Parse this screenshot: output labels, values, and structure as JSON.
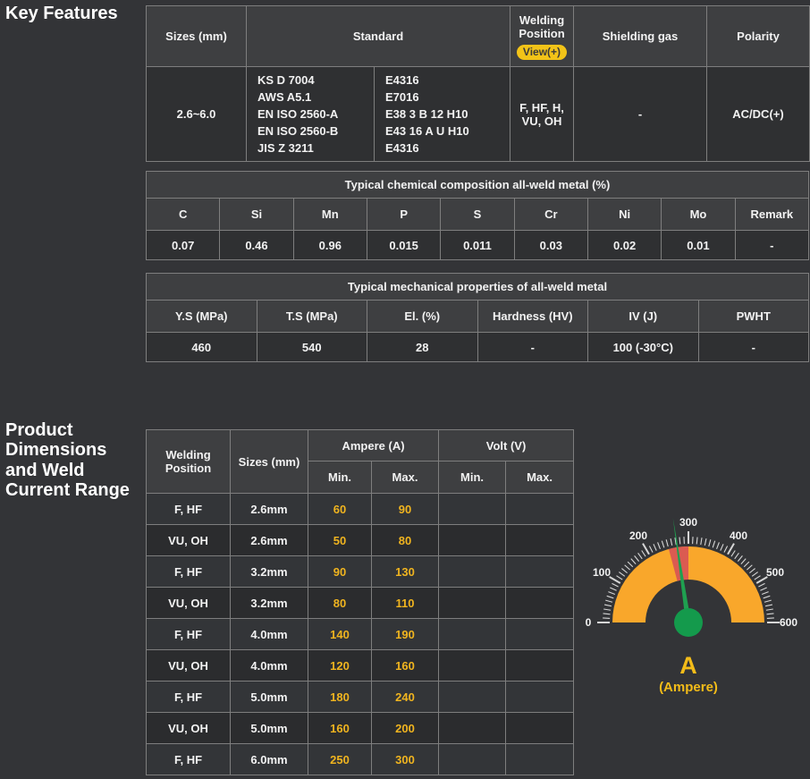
{
  "headings": {
    "key_features": "Key Features",
    "product_dimensions": "Product Dimensions and Weld Current Range"
  },
  "key_table": {
    "headers": {
      "sizes": "Sizes (mm)",
      "standard": "Standard",
      "welding_position": "Welding Position",
      "view_badge": "View(+)",
      "shielding_gas": "Shielding gas",
      "polarity": "Polarity"
    },
    "row": {
      "sizes": "2.6~6.0",
      "standard_left": "KS D 7004\nAWS A5.1\nEN ISO 2560-A\nEN ISO 2560-B\nJIS Z 3211",
      "standard_right": "E4316\nE7016\nE38 3 B 12 H10\nE43 16 A U H10\nE4316",
      "welding_position": "F, HF, H, VU, OH",
      "shielding_gas": "-",
      "polarity": "AC/DC(+)"
    }
  },
  "chemical_table": {
    "title": "Typical chemical composition all-weld metal (%)",
    "columns": [
      "C",
      "Si",
      "Mn",
      "P",
      "S",
      "Cr",
      "Ni",
      "Mo",
      "Remark"
    ],
    "values": [
      "0.07",
      "0.46",
      "0.96",
      "0.015",
      "0.011",
      "0.03",
      "0.02",
      "0.01",
      "-"
    ]
  },
  "mechanical_table": {
    "title": "Typical mechanical properties of all-weld metal",
    "columns": [
      "Y.S (MPa)",
      "T.S (MPa)",
      "El. (%)",
      "Hardness (HV)",
      "IV (J)",
      "PWHT"
    ],
    "values": [
      "460",
      "540",
      "28",
      "-",
      "100 (-30°C)",
      "-"
    ]
  },
  "current_table": {
    "headers": {
      "welding_position": "Welding Position",
      "sizes": "Sizes (mm)",
      "ampere": "Ampere (A)",
      "volt": "Volt (V)",
      "min": "Min.",
      "max": "Max."
    },
    "rows": [
      {
        "position": "F, HF",
        "size": "2.6mm",
        "amp_min": "60",
        "amp_max": "90",
        "volt_min": "",
        "volt_max": ""
      },
      {
        "position": "VU, OH",
        "size": "2.6mm",
        "amp_min": "50",
        "amp_max": "80",
        "volt_min": "",
        "volt_max": ""
      },
      {
        "position": "F, HF",
        "size": "3.2mm",
        "amp_min": "90",
        "amp_max": "130",
        "volt_min": "",
        "volt_max": ""
      },
      {
        "position": "VU, OH",
        "size": "3.2mm",
        "amp_min": "80",
        "amp_max": "110",
        "volt_min": "",
        "volt_max": ""
      },
      {
        "position": "F, HF",
        "size": "4.0mm",
        "amp_min": "140",
        "amp_max": "190",
        "volt_min": "",
        "volt_max": ""
      },
      {
        "position": "VU, OH",
        "size": "4.0mm",
        "amp_min": "120",
        "amp_max": "160",
        "volt_min": "",
        "volt_max": ""
      },
      {
        "position": "F, HF",
        "size": "5.0mm",
        "amp_min": "180",
        "amp_max": "240",
        "volt_min": "",
        "volt_max": ""
      },
      {
        "position": "VU, OH",
        "size": "5.0mm",
        "amp_min": "160",
        "amp_max": "200",
        "volt_min": "",
        "volt_max": ""
      },
      {
        "position": "F, HF",
        "size": "6.0mm",
        "amp_min": "250",
        "amp_max": "300",
        "volt_min": "",
        "volt_max": ""
      }
    ]
  },
  "chart_data": {
    "type": "gauge",
    "title": "A (Ampere)",
    "min": 0,
    "max": 600,
    "minor_tick_step": 10,
    "major_tick_step": 100,
    "tick_labels": [
      0,
      100,
      200,
      300,
      400,
      500,
      600
    ],
    "highlight_zone": {
      "from": 250,
      "to": 300
    },
    "needle_value": 272
  },
  "gauge": {
    "min": 0,
    "max": 600,
    "minor_step": 10,
    "major_step": 100,
    "band": {
      "color": "#F9A72B",
      "inner_r": 48,
      "outer_r": 85
    },
    "red_zone": {
      "from": 250,
      "to": 300,
      "color": "#DB5B51"
    },
    "needle": {
      "value": 272,
      "color": "#1FA050"
    },
    "hub": {
      "color": "#149A4C",
      "radius": 16
    },
    "tick_color": "#D6D6D6",
    "tick_label_color": "#F2F2F2",
    "label": "A",
    "sublabel": "(Ampere)"
  }
}
